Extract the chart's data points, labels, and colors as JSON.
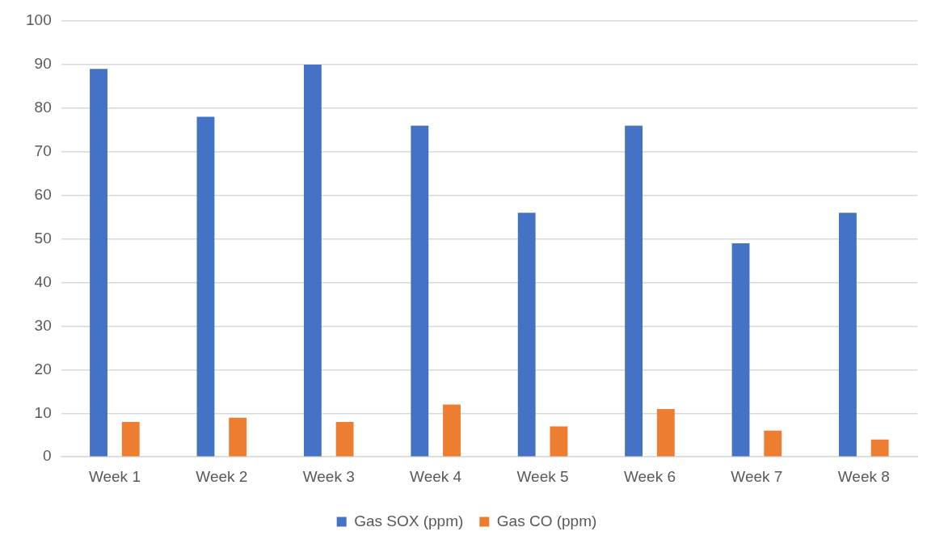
{
  "chart_data": {
    "type": "bar",
    "categories": [
      "Week 1",
      "Week 2",
      "Week 3",
      "Week 4",
      "Week 5",
      "Week 6",
      "Week 7",
      "Week 8"
    ],
    "series": [
      {
        "name": "Gas SOX (ppm)",
        "color": "#4472c4",
        "values": [
          89,
          78,
          90,
          76,
          56,
          76,
          49,
          56
        ]
      },
      {
        "name": "Gas CO (ppm)",
        "color": "#ed7d31",
        "values": [
          8,
          9,
          8,
          12,
          7,
          11,
          6,
          4
        ]
      }
    ],
    "ylim": [
      0,
      100
    ],
    "yticks": [
      0,
      10,
      20,
      30,
      40,
      50,
      60,
      70,
      80,
      90,
      100
    ],
    "grid": "y",
    "legend": "bottom"
  }
}
